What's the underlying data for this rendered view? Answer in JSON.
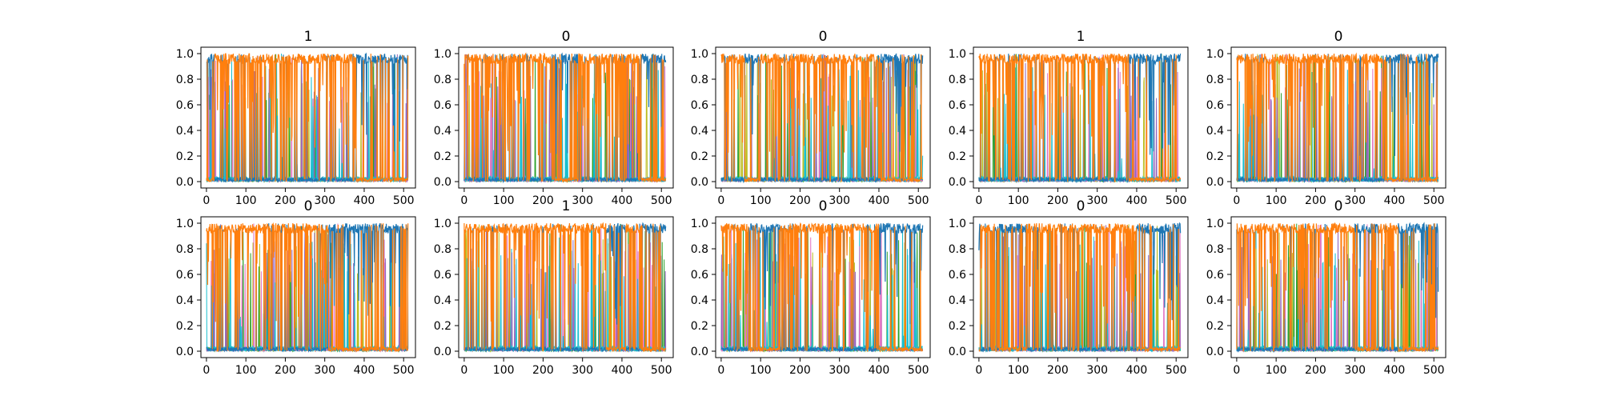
{
  "figure": {
    "description_free": true
  },
  "chart_data": {
    "type": "line",
    "layout": {
      "rows": 2,
      "cols": 5
    },
    "colors": [
      "#1f77b4",
      "#ff7f0e",
      "#17becf",
      "#bcbd22",
      "#2ca02c",
      "#e377c2",
      "#9467bd"
    ],
    "series_color_primary": "#1f77b4",
    "series_color_secondary": "#ff7f0e",
    "shared_axes": {
      "xlim": [
        -14,
        530
      ],
      "ylim": [
        -0.05,
        1.05
      ],
      "xticks": [
        0,
        100,
        200,
        300,
        400,
        500
      ],
      "yticks": [
        0.0,
        0.2,
        0.4,
        0.6,
        0.8,
        1.0
      ],
      "xtick_labels": [
        "0",
        "100",
        "200",
        "300",
        "400",
        "500"
      ],
      "ytick_labels": [
        "0.0",
        "0.2",
        "0.4",
        "0.6",
        "0.8",
        "1.0"
      ],
      "n_points": 512
    },
    "panels": [
      {
        "title": "1",
        "dominant_segments": [
          [
            0,
            20,
            "blue"
          ],
          [
            20,
            380,
            "orange"
          ],
          [
            380,
            512,
            "blue"
          ]
        ]
      },
      {
        "title": "0",
        "dominant_segments": [
          [
            0,
            230,
            "orange"
          ],
          [
            230,
            290,
            "blue"
          ],
          [
            290,
            450,
            "orange"
          ],
          [
            450,
            512,
            "blue"
          ]
        ]
      },
      {
        "title": "0",
        "dominant_segments": [
          [
            0,
            60,
            "orange"
          ],
          [
            60,
            100,
            "blue"
          ],
          [
            100,
            400,
            "orange"
          ],
          [
            400,
            512,
            "blue"
          ]
        ]
      },
      {
        "title": "1",
        "dominant_segments": [
          [
            0,
            380,
            "orange"
          ],
          [
            380,
            512,
            "blue"
          ]
        ]
      },
      {
        "title": "0",
        "dominant_segments": [
          [
            0,
            380,
            "orange"
          ],
          [
            380,
            512,
            "blue"
          ]
        ]
      },
      {
        "title": "0",
        "dominant_segments": [
          [
            0,
            310,
            "orange"
          ],
          [
            310,
            512,
            "blue"
          ]
        ]
      },
      {
        "title": "1",
        "dominant_segments": [
          [
            0,
            360,
            "orange"
          ],
          [
            360,
            410,
            "blue"
          ],
          [
            410,
            450,
            "orange"
          ],
          [
            450,
            512,
            "blue"
          ]
        ]
      },
      {
        "title": "0",
        "dominant_segments": [
          [
            0,
            70,
            "orange"
          ],
          [
            70,
            150,
            "blue"
          ],
          [
            150,
            400,
            "orange"
          ],
          [
            400,
            512,
            "blue"
          ]
        ]
      },
      {
        "title": "0",
        "dominant_segments": [
          [
            0,
            40,
            "orange"
          ],
          [
            40,
            120,
            "blue"
          ],
          [
            120,
            400,
            "orange"
          ],
          [
            400,
            512,
            "blue"
          ]
        ]
      },
      {
        "title": "0",
        "dominant_segments": [
          [
            0,
            300,
            "orange"
          ],
          [
            300,
            360,
            "blue"
          ],
          [
            360,
            410,
            "orange"
          ],
          [
            410,
            512,
            "blue"
          ]
        ]
      }
    ]
  }
}
